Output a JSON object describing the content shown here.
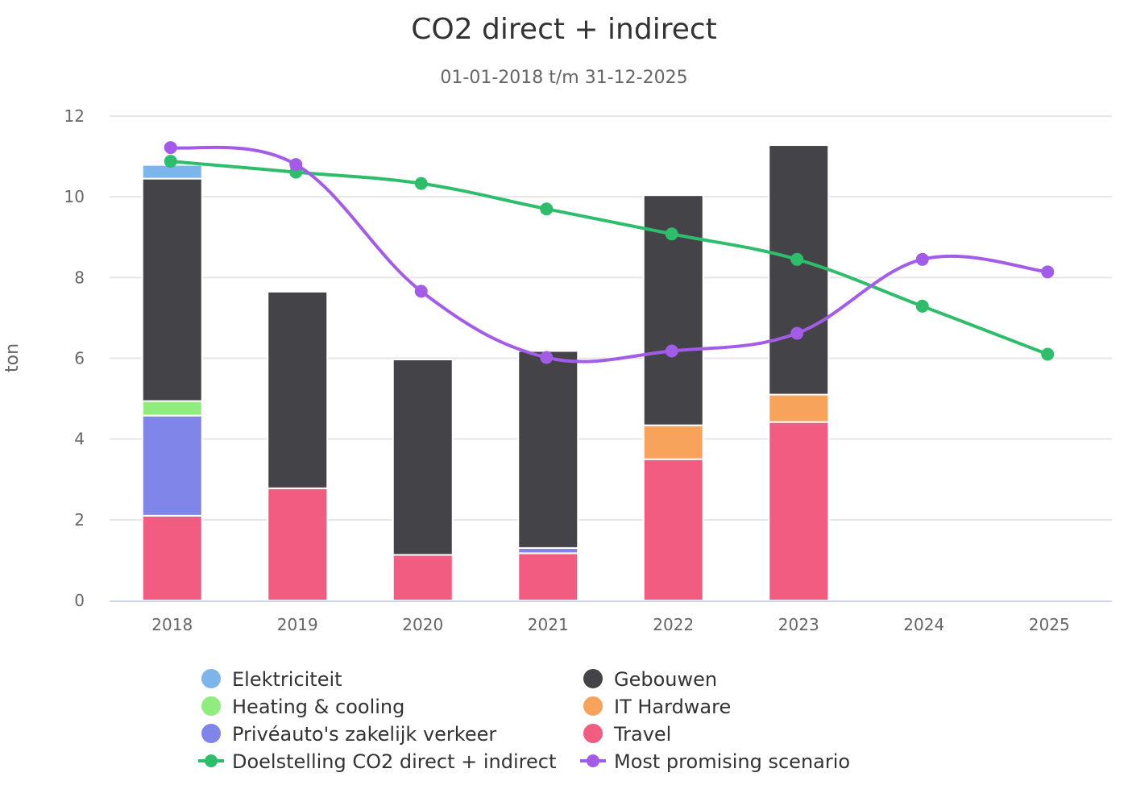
{
  "chart_data": {
    "type": "bar",
    "stacked": true,
    "title": "CO2 direct + indirect",
    "subtitle": "01-01-2018 t/m 31-12-2025",
    "ylabel": "ton",
    "xlabel": "",
    "ylim": [
      0,
      12
    ],
    "yticks": [
      0,
      2,
      4,
      6,
      8,
      10,
      12
    ],
    "grid": true,
    "legend_position": "bottom",
    "categories": [
      "2018",
      "2019",
      "2020",
      "2021",
      "2022",
      "2023",
      "2024",
      "2025"
    ],
    "bar_series": [
      {
        "name": "Travel",
        "color": "#f15c80",
        "values": [
          2.1,
          2.78,
          1.13,
          1.17,
          3.5,
          4.42,
          0,
          0
        ]
      },
      {
        "name": "Privéauto's zakelijk verkeer",
        "color": "#8085e9",
        "values": [
          2.48,
          0,
          0,
          0.13,
          0,
          0,
          0,
          0
        ]
      },
      {
        "name": "Heating & cooling",
        "color": "#90ed7d",
        "values": [
          0.36,
          0,
          0,
          0,
          0,
          0,
          0,
          0
        ]
      },
      {
        "name": "IT Hardware",
        "color": "#f7a35c",
        "values": [
          0,
          0,
          0,
          0,
          0.84,
          0.68,
          0,
          0
        ]
      },
      {
        "name": "Gebouwen",
        "color": "#434348",
        "values": [
          5.51,
          4.87,
          4.84,
          4.88,
          5.7,
          6.18,
          0,
          0
        ]
      },
      {
        "name": "Elektriciteit",
        "color": "#7cb5ec",
        "values": [
          0.34,
          0,
          0,
          0,
          0,
          0,
          0,
          0
        ]
      }
    ],
    "line_series": [
      {
        "name": "Doelstelling CO2 direct + indirect",
        "color": "#2ebd6b",
        "values": [
          10.88,
          10.61,
          10.33,
          9.7,
          9.08,
          8.45,
          7.29,
          6.1
        ]
      },
      {
        "name": "Most promising scenario",
        "color": "#a35ce8",
        "values": [
          11.22,
          10.8,
          7.66,
          6.02,
          6.18,
          6.62,
          8.45,
          8.14
        ]
      }
    ],
    "legend": [
      {
        "name": "Elektriciteit",
        "color": "#7cb5ec",
        "symbol": "circle"
      },
      {
        "name": "Gebouwen",
        "color": "#434348",
        "symbol": "circle"
      },
      {
        "name": "Heating & cooling",
        "color": "#90ed7d",
        "symbol": "circle"
      },
      {
        "name": "IT Hardware",
        "color": "#f7a35c",
        "symbol": "circle"
      },
      {
        "name": "Privéauto's zakelijk verkeer",
        "color": "#8085e9",
        "symbol": "circle"
      },
      {
        "name": "Travel",
        "color": "#f15c80",
        "symbol": "circle"
      },
      {
        "name": "Doelstelling CO2 direct + indirect",
        "color": "#2ebd6b",
        "symbol": "line"
      },
      {
        "name": "Most promising scenario",
        "color": "#a35ce8",
        "symbol": "line"
      }
    ]
  }
}
